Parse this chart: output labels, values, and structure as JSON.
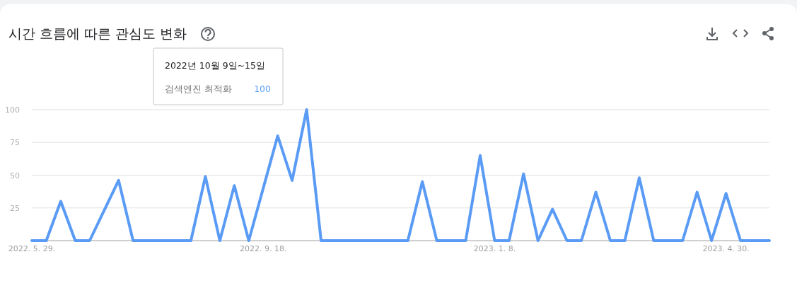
{
  "chart_data": {
    "type": "line",
    "title": "시간 흐름에 따른 관심도 변화",
    "x": [
      "2022-05-29",
      "2022-06-05",
      "2022-06-12",
      "2022-06-19",
      "2022-06-26",
      "2022-07-03",
      "2022-07-10",
      "2022-07-17",
      "2022-07-24",
      "2022-07-31",
      "2022-08-07",
      "2022-08-14",
      "2022-08-21",
      "2022-08-28",
      "2022-09-04",
      "2022-09-11",
      "2022-09-18",
      "2022-09-25",
      "2022-10-02",
      "2022-10-09",
      "2022-10-16",
      "2022-10-23",
      "2022-10-30",
      "2022-11-06",
      "2022-11-13",
      "2022-11-20",
      "2022-11-27",
      "2022-12-04",
      "2022-12-11",
      "2022-12-18",
      "2022-12-25",
      "2023-01-01",
      "2023-01-08",
      "2023-01-15",
      "2023-01-22",
      "2023-01-29",
      "2023-02-05",
      "2023-02-12",
      "2023-02-19",
      "2023-02-26",
      "2023-03-05",
      "2023-03-12",
      "2023-03-19",
      "2023-03-26",
      "2023-04-02",
      "2023-04-09",
      "2023-04-16",
      "2023-04-23",
      "2023-04-30",
      "2023-05-07",
      "2023-05-14",
      "2023-05-21"
    ],
    "series": [
      {
        "name": "검색엔진 최적화",
        "color": "#5a9bf5",
        "values": [
          0,
          0,
          30,
          0,
          0,
          23,
          46,
          0,
          0,
          0,
          0,
          0,
          49,
          0,
          42,
          0,
          40,
          80,
          46,
          100,
          0,
          0,
          0,
          0,
          0,
          0,
          0,
          45,
          0,
          0,
          0,
          65,
          0,
          0,
          51,
          0,
          24,
          0,
          0,
          37,
          0,
          0,
          48,
          0,
          0,
          0,
          37,
          0,
          36,
          0,
          0,
          0
        ]
      }
    ],
    "xlim": [
      "2022-05-29",
      "2023-05-21"
    ],
    "xticks": [
      {
        "value": "2022-05-29",
        "label": "2022. 5. 29."
      },
      {
        "value": "2022-09-18",
        "label": "2022. 9. 18."
      },
      {
        "value": "2023-01-08",
        "label": "2023. 1. 8."
      },
      {
        "value": "2023-04-30",
        "label": "2023. 4. 30."
      }
    ],
    "ylim": [
      0,
      100
    ],
    "yticks": [
      {
        "value": 0,
        "label": null
      },
      25,
      50,
      75,
      100
    ],
    "grid": "y",
    "marker": "none",
    "line_style": "solid",
    "annotations": [
      "2022년 10월 9일~15일",
      "100"
    ]
  }
}
